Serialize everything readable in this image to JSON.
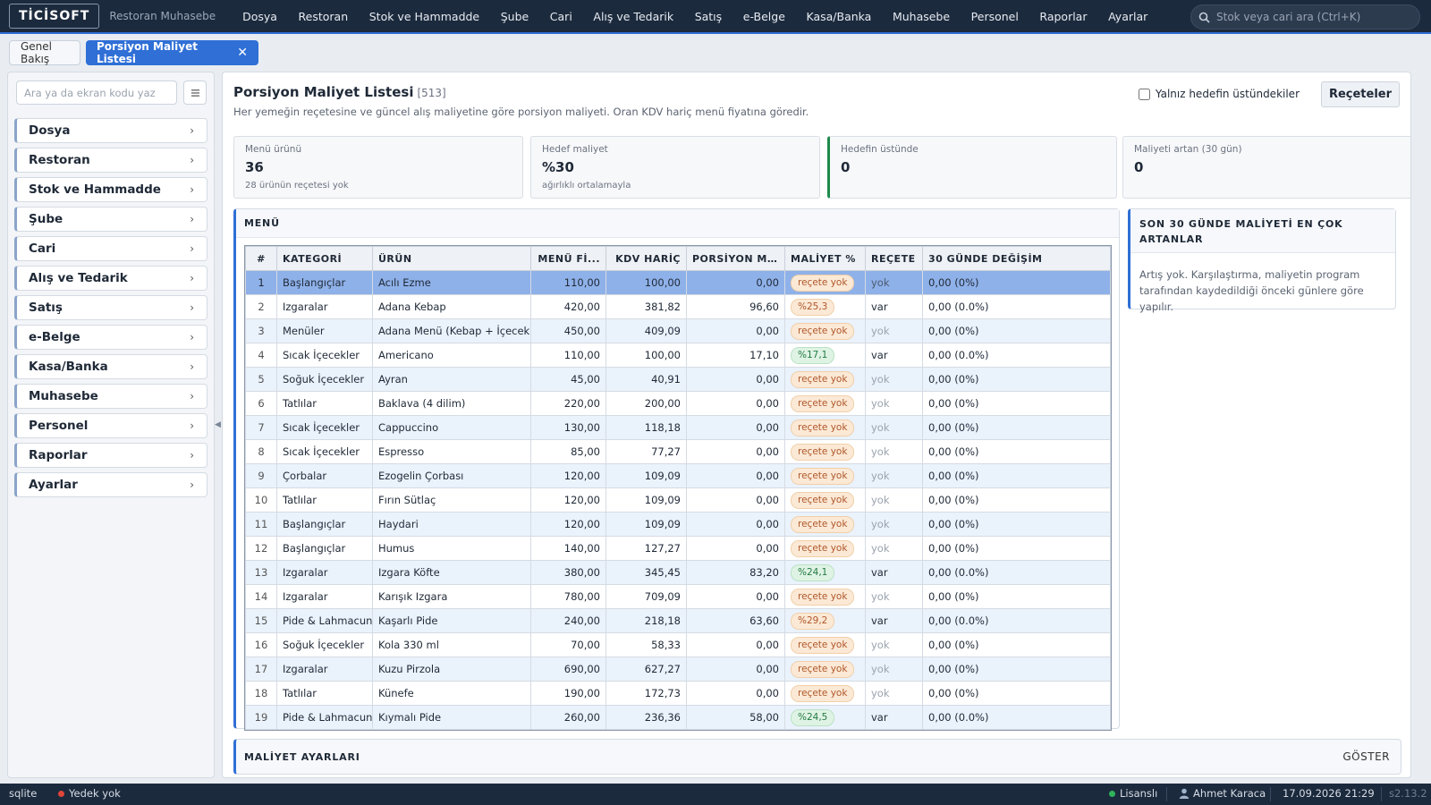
{
  "app": {
    "logo": "TİCİSOFT",
    "name": "Restoran Muhasebe"
  },
  "mainmenu": [
    "Dosya",
    "Restoran",
    "Stok ve Hammadde",
    "Şube",
    "Cari",
    "Alış ve Tedarik",
    "Satış",
    "e-Belge",
    "Kasa/Banka",
    "Muhasebe",
    "Personel",
    "Raporlar",
    "Ayarlar"
  ],
  "search": {
    "placeholder": "Stok veya cari ara (Ctrl+K)"
  },
  "tabs": {
    "overview": "Genel Bakış",
    "active": "Porsiyon Maliyet Listesi",
    "close": "✕"
  },
  "sidebar": {
    "search_placeholder": "Ara ya da ekran kodu yaz",
    "items": [
      "Dosya",
      "Restoran",
      "Stok ve Hammadde",
      "Şube",
      "Cari",
      "Alış ve Tedarik",
      "Satış",
      "e-Belge",
      "Kasa/Banka",
      "Muhasebe",
      "Personel",
      "Raporlar",
      "Ayarlar"
    ]
  },
  "page": {
    "title": "Porsiyon Maliyet Listesi",
    "count": "[513]",
    "subtitle": "Her yemeğin reçetesine ve güncel alış maliyetine göre porsiyon maliyeti. Oran KDV hariç menü fiyatına göredir.",
    "only_above_label": "Yalnız hedefin üstündekiler",
    "recipes_button": "Reçeteler"
  },
  "kpis": [
    {
      "label": "Menü ürünü",
      "value": "36",
      "note": "28 ürünün reçetesi yok"
    },
    {
      "label": "Hedef maliyet",
      "value": "%30",
      "note": "ağırlıklı ortalamayla"
    },
    {
      "label": "Hedefin üstünde",
      "value": "0",
      "note": ""
    },
    {
      "label": "Maliyeti artan (30 gün)",
      "value": "0",
      "note": ""
    }
  ],
  "menu": {
    "title": "MENÜ",
    "columns": [
      "#",
      "KATEGORİ",
      "ÜRÜN",
      "MENÜ Fİ...",
      "KDV HARİÇ",
      "PORSİYON M...",
      "MALİYET %",
      "REÇETE",
      "30 GÜNDE DEĞİŞİM"
    ],
    "rows": [
      [
        "1",
        "Başlangıçlar",
        "Acılı Ezme",
        "110,00",
        "100,00",
        "0,00",
        "reçete yok",
        "yok",
        "0,00 (0%)"
      ],
      [
        "2",
        "Izgaralar",
        "Adana Kebap",
        "420,00",
        "381,82",
        "96,60",
        "%25,3",
        "var",
        "0,00 (0.0%)"
      ],
      [
        "3",
        "Menüler",
        "Adana Menü (Kebap + İçecek)",
        "450,00",
        "409,09",
        "0,00",
        "reçete yok",
        "yok",
        "0,00 (0%)"
      ],
      [
        "4",
        "Sıcak İçecekler",
        "Americano",
        "110,00",
        "100,00",
        "17,10",
        "%17,1",
        "var",
        "0,00 (0.0%)"
      ],
      [
        "5",
        "Soğuk İçecekler",
        "Ayran",
        "45,00",
        "40,91",
        "0,00",
        "reçete yok",
        "yok",
        "0,00 (0%)"
      ],
      [
        "6",
        "Tatlılar",
        "Baklava (4 dilim)",
        "220,00",
        "200,00",
        "0,00",
        "reçete yok",
        "yok",
        "0,00 (0%)"
      ],
      [
        "7",
        "Sıcak İçecekler",
        "Cappuccino",
        "130,00",
        "118,18",
        "0,00",
        "reçete yok",
        "yok",
        "0,00 (0%)"
      ],
      [
        "8",
        "Sıcak İçecekler",
        "Espresso",
        "85,00",
        "77,27",
        "0,00",
        "reçete yok",
        "yok",
        "0,00 (0%)"
      ],
      [
        "9",
        "Çorbalar",
        "Ezogelin Çorbası",
        "120,00",
        "109,09",
        "0,00",
        "reçete yok",
        "yok",
        "0,00 (0%)"
      ],
      [
        "10",
        "Tatlılar",
        "Fırın Sütlaç",
        "120,00",
        "109,09",
        "0,00",
        "reçete yok",
        "yok",
        "0,00 (0%)"
      ],
      [
        "11",
        "Başlangıçlar",
        "Haydari",
        "120,00",
        "109,09",
        "0,00",
        "reçete yok",
        "yok",
        "0,00 (0%)"
      ],
      [
        "12",
        "Başlangıçlar",
        "Humus",
        "140,00",
        "127,27",
        "0,00",
        "reçete yok",
        "yok",
        "0,00 (0%)"
      ],
      [
        "13",
        "Izgaralar",
        "Izgara Köfte",
        "380,00",
        "345,45",
        "83,20",
        "%24,1",
        "var",
        "0,00 (0.0%)"
      ],
      [
        "14",
        "Izgaralar",
        "Karışık Izgara",
        "780,00",
        "709,09",
        "0,00",
        "reçete yok",
        "yok",
        "0,00 (0%)"
      ],
      [
        "15",
        "Pide & Lahmacun",
        "Kaşarlı Pide",
        "240,00",
        "218,18",
        "63,60",
        "%29,2",
        "var",
        "0,00 (0.0%)"
      ],
      [
        "16",
        "Soğuk İçecekler",
        "Kola 330 ml",
        "70,00",
        "58,33",
        "0,00",
        "reçete yok",
        "yok",
        "0,00 (0%)"
      ],
      [
        "17",
        "Izgaralar",
        "Kuzu Pirzola",
        "690,00",
        "627,27",
        "0,00",
        "reçete yok",
        "yok",
        "0,00 (0%)"
      ],
      [
        "18",
        "Tatlılar",
        "Künefe",
        "190,00",
        "172,73",
        "0,00",
        "reçete yok",
        "yok",
        "0,00 (0%)"
      ],
      [
        "19",
        "Pide & Lahmacun",
        "Kıymalı Pide",
        "260,00",
        "236,36",
        "58,00",
        "%24,5",
        "var",
        "0,00 (0.0%)"
      ]
    ],
    "selected_row": 0
  },
  "increases": {
    "title": "SON 30 GÜNDE MALİYETİ EN ÇOK ARTANLAR",
    "body": "Artış yok. Karşılaştırma, maliyetin program tarafından kaydedildiği önceki günlere göre yapılır."
  },
  "settings": {
    "title": "MALİYET AYARLARI",
    "show": "GÖSTER"
  },
  "status": {
    "db": "sqlite",
    "backup": "Yedek yok",
    "license": "Lisanslı",
    "user": "Ahmet Karaca",
    "datetime": "17.09.2026 21:29",
    "version": "s2.13.2"
  },
  "colors": {
    "accent": "#2f6fd6",
    "topbar": "#1c2a3d",
    "ok": "#237a44",
    "warn": "#b0572a"
  }
}
